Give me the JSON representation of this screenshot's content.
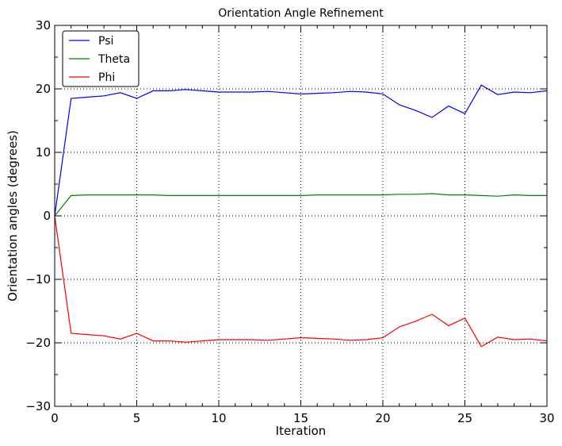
{
  "chart_data": {
    "type": "line",
    "title": "Orientation Angle Refinement",
    "xlabel": "Iteration",
    "ylabel": "Orientation angles (degrees)",
    "xlim": [
      0,
      30
    ],
    "ylim": [
      -30,
      30
    ],
    "xticks": [
      0,
      5,
      10,
      15,
      20,
      25,
      30
    ],
    "yticks": [
      -30,
      -20,
      -10,
      0,
      10,
      20,
      30
    ],
    "grid": true,
    "legend_position": "top-left",
    "x": [
      0,
      1,
      2,
      3,
      4,
      5,
      6,
      7,
      8,
      9,
      10,
      11,
      12,
      13,
      14,
      15,
      16,
      17,
      18,
      19,
      20,
      21,
      22,
      23,
      24,
      25,
      26,
      27,
      28,
      29,
      30
    ],
    "series": [
      {
        "name": "Psi",
        "color": "#0000ff",
        "values": [
          0.0,
          18.5,
          18.7,
          18.9,
          19.4,
          18.5,
          19.7,
          19.7,
          19.9,
          19.7,
          19.5,
          19.5,
          19.5,
          19.6,
          19.4,
          19.2,
          19.3,
          19.4,
          19.6,
          19.5,
          19.2,
          17.5,
          16.6,
          15.5,
          17.3,
          16.1,
          20.6,
          19.1,
          19.5,
          19.4,
          19.7
        ]
      },
      {
        "name": "Theta",
        "color": "#008000",
        "values": [
          0.0,
          3.2,
          3.3,
          3.3,
          3.3,
          3.3,
          3.3,
          3.2,
          3.2,
          3.2,
          3.2,
          3.2,
          3.2,
          3.2,
          3.2,
          3.2,
          3.3,
          3.3,
          3.3,
          3.3,
          3.3,
          3.4,
          3.4,
          3.5,
          3.3,
          3.3,
          3.2,
          3.1,
          3.3,
          3.2,
          3.2
        ]
      },
      {
        "name": "Phi",
        "color": "#ff0000",
        "values": [
          0.0,
          -18.5,
          -18.7,
          -18.9,
          -19.4,
          -18.5,
          -19.7,
          -19.7,
          -19.9,
          -19.7,
          -19.5,
          -19.5,
          -19.5,
          -19.6,
          -19.4,
          -19.2,
          -19.3,
          -19.4,
          -19.6,
          -19.5,
          -19.2,
          -17.5,
          -16.6,
          -15.5,
          -17.3,
          -16.1,
          -20.6,
          -19.1,
          -19.5,
          -19.4,
          -19.7
        ]
      }
    ]
  }
}
